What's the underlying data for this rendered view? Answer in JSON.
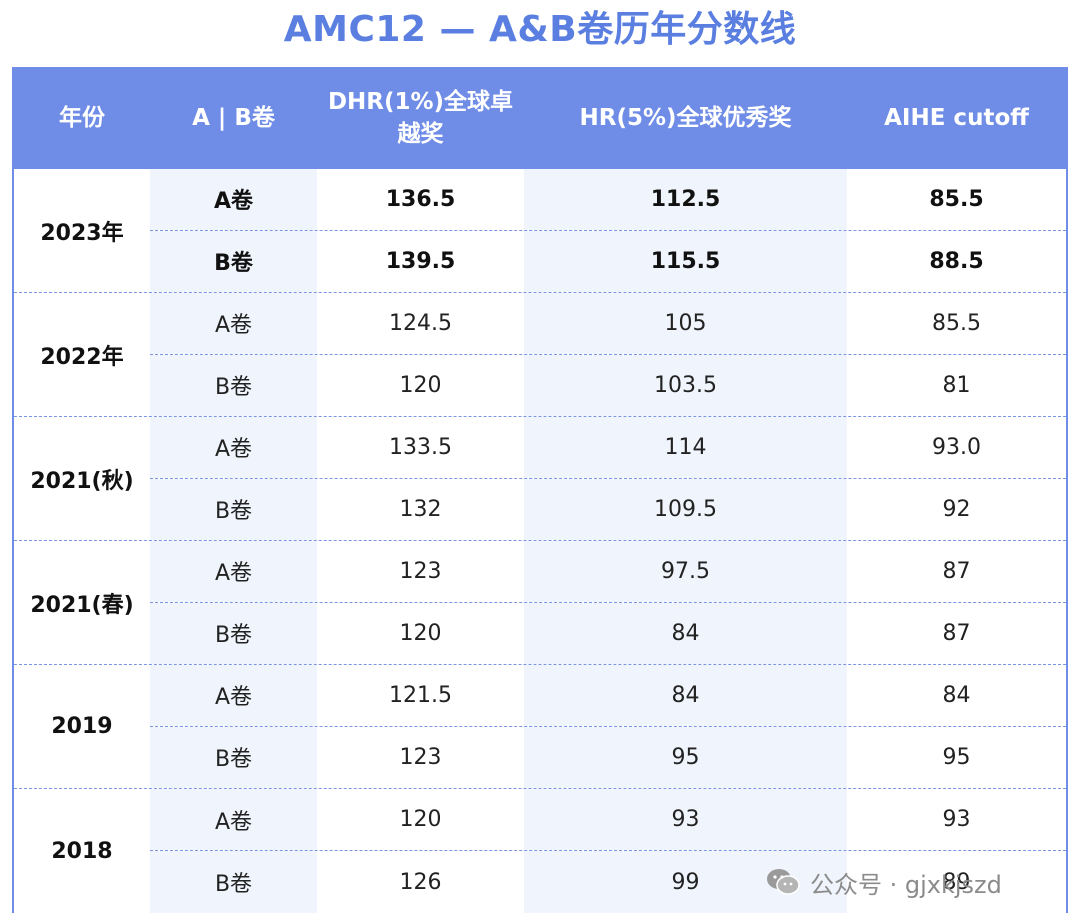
{
  "title": "AMC12 — A&B卷历年分数线",
  "headers": [
    "年份",
    "A | B卷",
    "DHR(1%)全球卓越奖",
    "HR(5%)全球优秀奖",
    "AIHE cutoff"
  ],
  "groups": [
    {
      "year": "2023年",
      "rows": [
        {
          "paper": "A卷",
          "dhr": "136.5",
          "hr": "112.5",
          "aihe": "85.5"
        },
        {
          "paper": "B卷",
          "dhr": "139.5",
          "hr": "115.5",
          "aihe": "88.5"
        }
      ]
    },
    {
      "year": "2022年",
      "rows": [
        {
          "paper": "A卷",
          "dhr": "124.5",
          "hr": "105",
          "aihe": "85.5"
        },
        {
          "paper": "B卷",
          "dhr": "120",
          "hr": "103.5",
          "aihe": "81"
        }
      ]
    },
    {
      "year": "2021(秋)",
      "rows": [
        {
          "paper": "A卷",
          "dhr": "133.5",
          "hr": "114",
          "aihe": "93.0"
        },
        {
          "paper": "B卷",
          "dhr": "132",
          "hr": "109.5",
          "aihe": "92"
        }
      ]
    },
    {
      "year": "2021(春)",
      "rows": [
        {
          "paper": "A卷",
          "dhr": "123",
          "hr": "97.5",
          "aihe": "87"
        },
        {
          "paper": "B卷",
          "dhr": "120",
          "hr": "84",
          "aihe": "87"
        }
      ]
    },
    {
      "year": "2019",
      "rows": [
        {
          "paper": "A卷",
          "dhr": "121.5",
          "hr": "84",
          "aihe": "84"
        },
        {
          "paper": "B卷",
          "dhr": "123",
          "hr": "95",
          "aihe": "95"
        }
      ]
    },
    {
      "year": "2018",
      "rows": [
        {
          "paper": "A卷",
          "dhr": "120",
          "hr": "93",
          "aihe": "93"
        },
        {
          "paper": "B卷",
          "dhr": "126",
          "hr": "99",
          "aihe": "89"
        }
      ]
    }
  ],
  "watermark": {
    "text": "公众号 · gjxkjszd",
    "icon": "wechat-icon"
  },
  "colors": {
    "title": "#5b7fe0",
    "header_bg": "#6f8de6",
    "shade": "#f0f4fc"
  }
}
